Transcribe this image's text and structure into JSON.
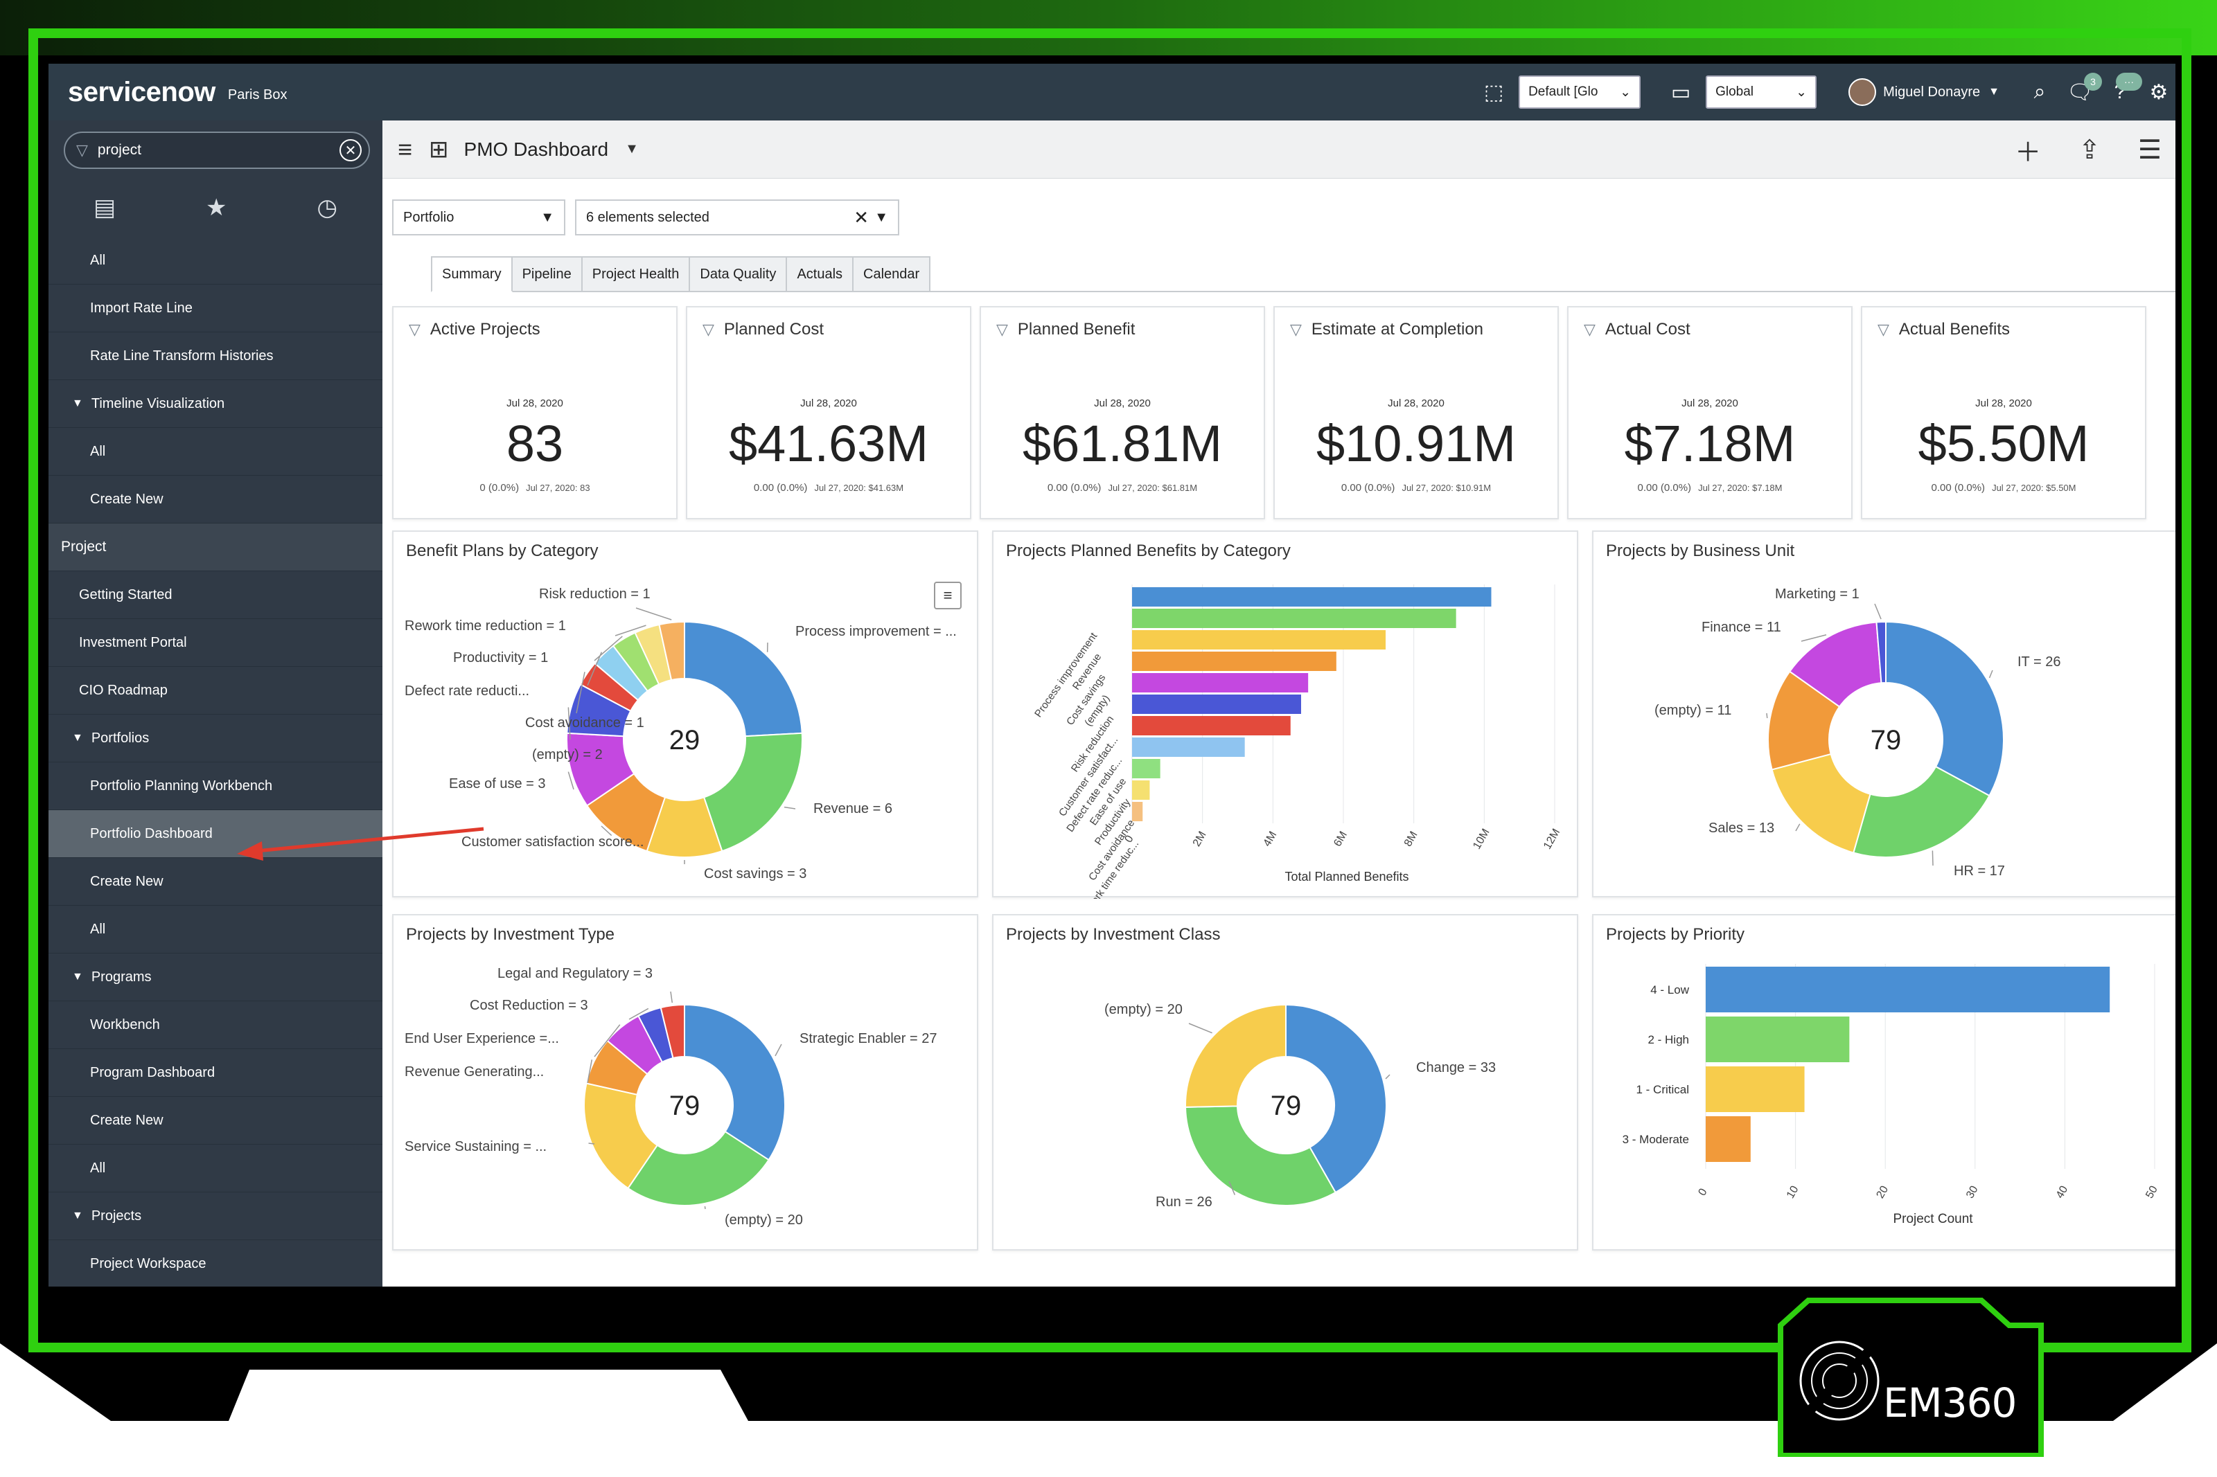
{
  "header": {
    "logo": "servicenow",
    "instance": "Paris Box",
    "app_scope": "Default [Glo",
    "domain": "Global",
    "user": "Miguel Donayre",
    "notification_count": "3",
    "chat_badge": "···"
  },
  "nav": {
    "filter_value": "project",
    "items": [
      {
        "label": "All",
        "style": "l1"
      },
      {
        "label": "Import Rate Line",
        "style": "l1"
      },
      {
        "label": "Rate Line Transform Histories",
        "style": "l1"
      },
      {
        "label": "Timeline Visualization",
        "style": "tri"
      },
      {
        "label": "All",
        "style": "l1"
      },
      {
        "label": "Create New",
        "style": "l1"
      },
      {
        "label": "Project",
        "style": "sec"
      },
      {
        "label": "Getting Started",
        "style": "l0"
      },
      {
        "label": "Investment Portal",
        "style": "l0"
      },
      {
        "label": "CIO Roadmap",
        "style": "l0"
      },
      {
        "label": "Portfolios",
        "style": "tri"
      },
      {
        "label": "Portfolio Planning Workbench",
        "style": "l1"
      },
      {
        "label": "Portfolio Dashboard",
        "style": "l1 active"
      },
      {
        "label": "Create New",
        "style": "l1"
      },
      {
        "label": "All",
        "style": "l1"
      },
      {
        "label": "Programs",
        "style": "tri"
      },
      {
        "label": "Workbench",
        "style": "l1"
      },
      {
        "label": "Program Dashboard",
        "style": "l1"
      },
      {
        "label": "Create New",
        "style": "l1"
      },
      {
        "label": "All",
        "style": "l1"
      },
      {
        "label": "Projects",
        "style": "tri"
      },
      {
        "label": "Project Workspace",
        "style": "l1"
      }
    ]
  },
  "dashboard": {
    "title": "PMO Dashboard",
    "filter_type": "Portfolio",
    "filter_selection": "6 elements selected",
    "tabs": [
      "Summary",
      "Pipeline",
      "Project Health",
      "Data Quality",
      "Actuals",
      "Calendar"
    ],
    "active_tab": "Summary"
  },
  "kpis": [
    {
      "title": "Active Projects",
      "date": "Jul 28, 2020",
      "value": "83",
      "change": "0 (0.0%)",
      "prev": "Jul 27, 2020: 83"
    },
    {
      "title": "Planned Cost",
      "date": "Jul 28, 2020",
      "value": "$41.63M",
      "change": "0.00 (0.0%)",
      "prev": "Jul 27, 2020: $41.63M"
    },
    {
      "title": "Planned Benefit",
      "date": "Jul 28, 2020",
      "value": "$61.81M",
      "change": "0.00 (0.0%)",
      "prev": "Jul 27, 2020: $61.81M"
    },
    {
      "title": "Estimate at Completion",
      "date": "Jul 28, 2020",
      "value": "$10.91M",
      "change": "0.00 (0.0%)",
      "prev": "Jul 27, 2020: $10.91M"
    },
    {
      "title": "Actual Cost",
      "date": "Jul 28, 2020",
      "value": "$7.18M",
      "change": "0.00 (0.0%)",
      "prev": "Jul 27, 2020: $7.18M"
    },
    {
      "title": "Actual Benefits",
      "date": "Jul 28, 2020",
      "value": "$5.50M",
      "change": "0.00 (0.0%)",
      "prev": "Jul 27, 2020: $5.50M"
    }
  ],
  "chart_data": [
    {
      "type": "pie",
      "title": "Benefit Plans by Category",
      "center_label": "29",
      "slices": [
        {
          "label": "Process improvement = ...",
          "value": 7,
          "color": "#4a8fd4"
        },
        {
          "label": "Revenue = 6",
          "value": 6,
          "color": "#6fd26a"
        },
        {
          "label": "Cost savings = 3",
          "value": 3,
          "color": "#f7cc4c"
        },
        {
          "label": "Customer satisfaction score...",
          "value": 3,
          "color": "#f19a3a"
        },
        {
          "label": "Ease of use = 3",
          "value": 3,
          "color": "#c448e0"
        },
        {
          "label": "(empty) = 2",
          "value": 2,
          "color": "#4a57d6"
        },
        {
          "label": "Cost avoidance = 1",
          "value": 1,
          "color": "#e34a3c"
        },
        {
          "label": "Defect rate reducti...",
          "value": 1,
          "color": "#8fd0f0"
        },
        {
          "label": "Productivity = 1",
          "value": 1,
          "color": "#a0e070"
        },
        {
          "label": "Rework time reduction = 1",
          "value": 1,
          "color": "#f5e080"
        },
        {
          "label": "Risk reduction = 1",
          "value": 1,
          "color": "#f5b060"
        }
      ]
    },
    {
      "type": "bar",
      "orientation": "horizontal",
      "title": "Projects Planned Benefits by Category",
      "xlabel": "Total Planned Benefits",
      "ticks": [
        "0",
        "2M",
        "4M",
        "6M",
        "8M",
        "10M",
        "12M"
      ],
      "xlim": [
        0,
        12000000
      ],
      "categories": [
        "Process improvement",
        "Revenue",
        "Cost savings",
        "(empty)",
        "Risk reduction",
        "Customer satisfact...",
        "Defect rate reduc...",
        "Ease of use",
        "Productivity",
        "Cost avoidance",
        "Rework time reduc..."
      ],
      "values": [
        10200000,
        9200000,
        7200000,
        5800000,
        5000000,
        4800000,
        4500000,
        3200000,
        800000,
        500000,
        300000
      ],
      "colors": [
        "#4a8fd4",
        "#7ed66a",
        "#f7cc4c",
        "#f19a3a",
        "#c448e0",
        "#4a57d6",
        "#e34a3c",
        "#8fc4f0",
        "#8fe080",
        "#f5e070",
        "#f5c080"
      ]
    },
    {
      "type": "pie",
      "title": "Projects by Business Unit",
      "center_label": "79",
      "slices": [
        {
          "label": "IT = 26",
          "value": 26,
          "color": "#4a8fd4"
        },
        {
          "label": "HR = 17",
          "value": 17,
          "color": "#6fd26a"
        },
        {
          "label": "Sales = 13",
          "value": 13,
          "color": "#f7cc4c"
        },
        {
          "label": "(empty) = 11",
          "value": 11,
          "color": "#f19a3a"
        },
        {
          "label": "Finance = 11",
          "value": 11,
          "color": "#c448e0"
        },
        {
          "label": "Marketing = 1",
          "value": 1,
          "color": "#4a57d6"
        }
      ]
    },
    {
      "type": "pie",
      "title": "Projects by Investment Type",
      "center_label": "79",
      "slices": [
        {
          "label": "Strategic Enabler = 27",
          "value": 27,
          "color": "#4a8fd4"
        },
        {
          "label": "(empty) = 20",
          "value": 20,
          "color": "#6fd26a"
        },
        {
          "label": "Service Sustaining = ...",
          "value": 15,
          "color": "#f7cc4c"
        },
        {
          "label": "Revenue Generating...",
          "value": 6,
          "color": "#f19a3a"
        },
        {
          "label": "End User Experience =...",
          "value": 5,
          "color": "#c448e0"
        },
        {
          "label": "Cost Reduction = 3",
          "value": 3,
          "color": "#4a57d6"
        },
        {
          "label": "Legal and Regulatory = 3",
          "value": 3,
          "color": "#e34a3c"
        }
      ]
    },
    {
      "type": "pie",
      "title": "Projects by Investment Class",
      "center_label": "79",
      "slices": [
        {
          "label": "Change = 33",
          "value": 33,
          "color": "#4a8fd4"
        },
        {
          "label": "Run = 26",
          "value": 26,
          "color": "#6fd26a"
        },
        {
          "label": "(empty) = 20",
          "value": 20,
          "color": "#f7cc4c"
        }
      ]
    },
    {
      "type": "bar",
      "orientation": "horizontal",
      "title": "Projects by Priority",
      "xlabel": "Project Count",
      "ticks": [
        "0",
        "10",
        "20",
        "30",
        "40",
        "50"
      ],
      "xlim": [
        0,
        50
      ],
      "categories": [
        "4 - Low",
        "2 - High",
        "1 - Critical",
        "3 - Moderate"
      ],
      "values": [
        45,
        16,
        11,
        5
      ],
      "colors": [
        "#4a8fd4",
        "#7ed66a",
        "#f7cc4c",
        "#f19a3a"
      ]
    }
  ],
  "badge": {
    "text": "EM360"
  }
}
